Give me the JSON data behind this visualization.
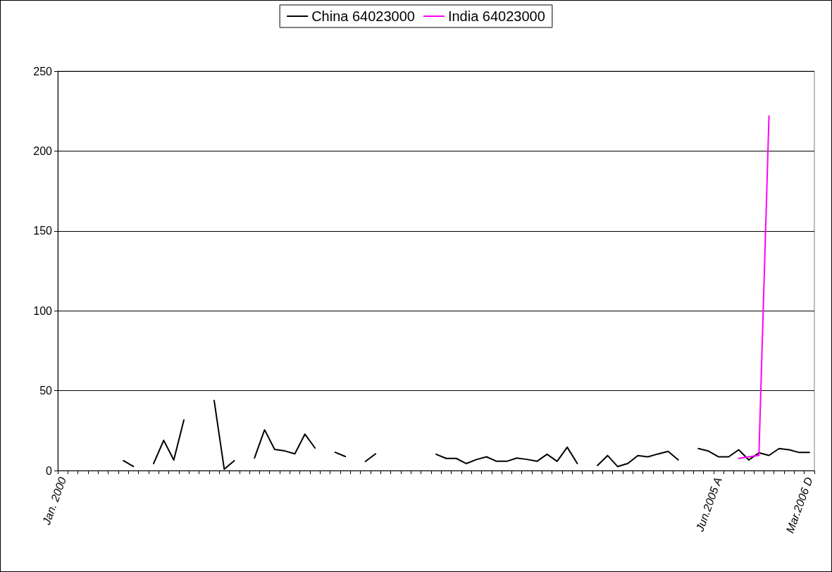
{
  "chart_data": {
    "type": "line",
    "categories": [
      "Jan. 2000",
      null,
      null,
      null,
      null,
      null,
      null,
      null,
      null,
      null,
      null,
      null,
      null,
      null,
      null,
      null,
      null,
      null,
      null,
      null,
      null,
      null,
      null,
      null,
      null,
      null,
      null,
      null,
      null,
      null,
      null,
      null,
      null,
      null,
      null,
      null,
      null,
      null,
      null,
      null,
      null,
      null,
      null,
      null,
      null,
      null,
      null,
      null,
      null,
      null,
      null,
      null,
      null,
      null,
      null,
      null,
      null,
      null,
      null,
      null,
      null,
      null,
      null,
      null,
      null,
      "Jun.2005 A",
      null,
      null,
      null,
      null,
      null,
      null,
      null,
      null,
      "Mar.2006 D"
    ],
    "series": [
      {
        "name": "China 64023000",
        "color": "#000000",
        "values": [
          null,
          null,
          null,
          null,
          null,
          null,
          6.2,
          2.6,
          null,
          4.4,
          18.9,
          6.6,
          31.6,
          null,
          null,
          43.9,
          0.9,
          6.2,
          null,
          7.9,
          25.5,
          13.2,
          12.3,
          10.5,
          22.8,
          14.1,
          null,
          11.4,
          8.8,
          null,
          5.7,
          10.5,
          null,
          null,
          null,
          null,
          null,
          10.2,
          7.6,
          7.6,
          4.4,
          6.9,
          8.6,
          5.8,
          5.8,
          7.8,
          7.0,
          5.8,
          10.2,
          5.8,
          14.6,
          4.4,
          null,
          3.2,
          9.4,
          2.5,
          4.4,
          9.4,
          8.6,
          10.4,
          12.0,
          6.7,
          null,
          13.8,
          12.2,
          8.6,
          8.6,
          13.0,
          6.6,
          11.1,
          9.5,
          13.8,
          13.0,
          11.3,
          11.3
        ]
      },
      {
        "name": "India 64023000",
        "color": "#ff00ff",
        "values": [
          null,
          null,
          null,
          null,
          null,
          null,
          null,
          null,
          null,
          null,
          null,
          null,
          null,
          null,
          null,
          null,
          null,
          null,
          null,
          null,
          null,
          null,
          null,
          null,
          null,
          null,
          null,
          null,
          null,
          null,
          null,
          null,
          null,
          null,
          null,
          null,
          null,
          null,
          null,
          null,
          null,
          null,
          null,
          null,
          null,
          null,
          null,
          null,
          null,
          null,
          null,
          null,
          null,
          null,
          null,
          null,
          null,
          null,
          null,
          null,
          null,
          null,
          null,
          null,
          null,
          null,
          null,
          7.6,
          8.6,
          9.5,
          222,
          null,
          null,
          null,
          null
        ]
      }
    ],
    "ylim": [
      0,
      250
    ],
    "yticks": [
      0,
      50,
      100,
      150,
      200,
      250
    ],
    "grid": "y",
    "legend": "top",
    "marker": "none",
    "line_style": "solid"
  }
}
